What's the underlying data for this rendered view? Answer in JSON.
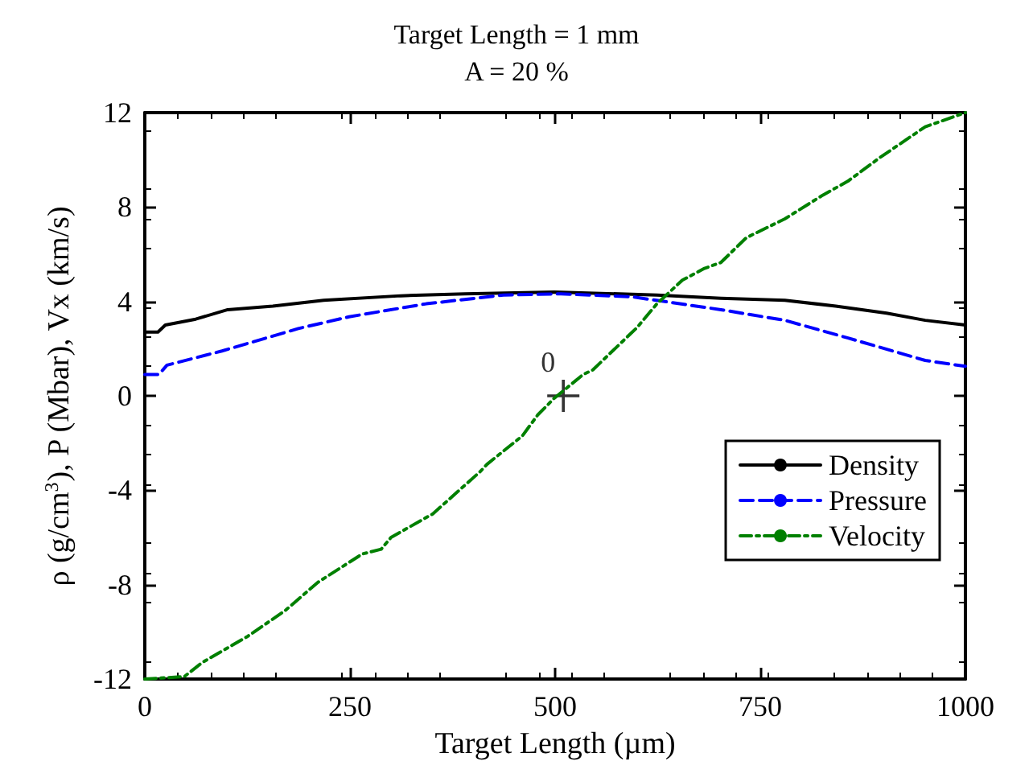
{
  "chart_data": {
    "type": "line",
    "title": "Target Length = 1 mm",
    "subtitle": "A = 20 %",
    "xlabel": "Target Length (µm)",
    "ylabel": "ρ (g/cm$^{3}$), P (Mbar), Vx (km/s)",
    "xlim": [
      0,
      1000
    ],
    "xticks": [
      0,
      250,
      500,
      750,
      1000
    ],
    "ylim": [
      -12,
      12
    ],
    "yticks": [
      -12,
      -8,
      -4,
      0,
      4,
      8,
      12
    ],
    "grid": false,
    "legend": "bottom right",
    "marker": "none",
    "series": [
      {
        "name": "Density",
        "color": "#000000",
        "line_style": "solid",
        "x": [
          0,
          16,
          25,
          62,
          101,
          156,
          218,
          312,
          390,
          499,
          624,
          702,
          780,
          842,
          904,
          951,
          1000
        ],
        "values": [
          2.7,
          2.7,
          3.0,
          3.25,
          3.65,
          3.8,
          4.05,
          4.24,
          4.32,
          4.4,
          4.27,
          4.13,
          4.05,
          3.8,
          3.5,
          3.2,
          3.0
        ]
      },
      {
        "name": "Pressure",
        "color": "#0000ff",
        "line_style": "dashed",
        "x": [
          0,
          17,
          27,
          94,
          187,
          249,
          343,
          437,
          507,
          593,
          702,
          780,
          857,
          951,
          1000
        ],
        "values": [
          0.9,
          0.9,
          1.3,
          1.9,
          2.85,
          3.35,
          3.9,
          4.27,
          4.32,
          4.2,
          3.65,
          3.2,
          2.45,
          1.5,
          1.25
        ]
      },
      {
        "name": "Velocity",
        "color": "#008000",
        "line_style": "dashdot",
        "x": [
          0,
          48,
          70,
          125,
          171,
          211,
          265,
          288,
          300,
          351,
          409,
          417,
          460,
          479,
          499,
          534,
          546,
          600,
          624,
          655,
          682,
          702,
          733,
          780,
          826,
          857,
          896,
          951,
          1000
        ],
        "values": [
          -12,
          -11.9,
          -11.3,
          -10.2,
          -9.1,
          -7.9,
          -6.7,
          -6.5,
          -6.0,
          -5.0,
          -3.2,
          -2.9,
          -1.7,
          -0.8,
          -0.1,
          0.9,
          1.1,
          2.9,
          3.9,
          4.9,
          5.4,
          5.65,
          6.7,
          7.5,
          8.5,
          9.1,
          10.1,
          11.4,
          12
        ]
      },
      {
        "type": "scatter",
        "color": "#000000",
        "marker": "cross",
        "x": [
          510
        ],
        "values": [
          0
        ]
      }
    ],
    "annotations": [
      {
        "text": "0",
        "x": 510,
        "y": 0
      }
    ]
  }
}
